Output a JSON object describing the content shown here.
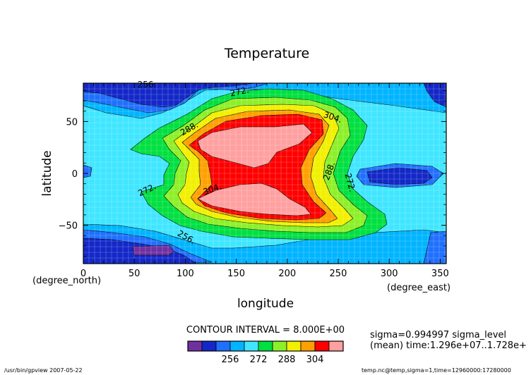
{
  "chart_data": {
    "type": "heatmap",
    "title": "Temperature",
    "xlabel": "longitude",
    "ylabel": "latitude",
    "xunit": "(degree_east)",
    "yunit": "(degree_north)",
    "xlim": [
      0,
      356
    ],
    "ylim": [
      -87,
      87
    ],
    "xticks": [
      "0",
      "50",
      "100",
      "150",
      "200",
      "250",
      "300",
      "350"
    ],
    "yticks": [
      "50",
      "0",
      "−50"
    ],
    "contour_interval_text": "CONTOUR INTERVAL = 8.000E+00",
    "contour_levels": [
      240,
      248,
      256,
      264,
      272,
      280,
      288,
      296,
      304,
      312
    ],
    "contour_labels": [
      "256.",
      "272.",
      "288.",
      "304.",
      "304.",
      "288.",
      "272.",
      "272.",
      "256."
    ],
    "colorbar_ticks": [
      "256",
      "272",
      "288",
      "304"
    ],
    "colorbar_colors": [
      "#7030a0",
      "#1428c8",
      "#2070ff",
      "#00b4ff",
      "#40e6ff",
      "#00e040",
      "#8cf028",
      "#f0f000",
      "#ffa000",
      "#ff0000",
      "#ffa0a0"
    ],
    "grid": true,
    "info_lines": [
      "sigma=0.994997 sigma_level",
      "(mean) time:1.296e+07..1.728e+"
    ],
    "footer_left": "/usr/bin/gpview  2007-05-22",
    "footer_right": "temp.nc@temp,sigma=1,time=12960000:17280000"
  }
}
